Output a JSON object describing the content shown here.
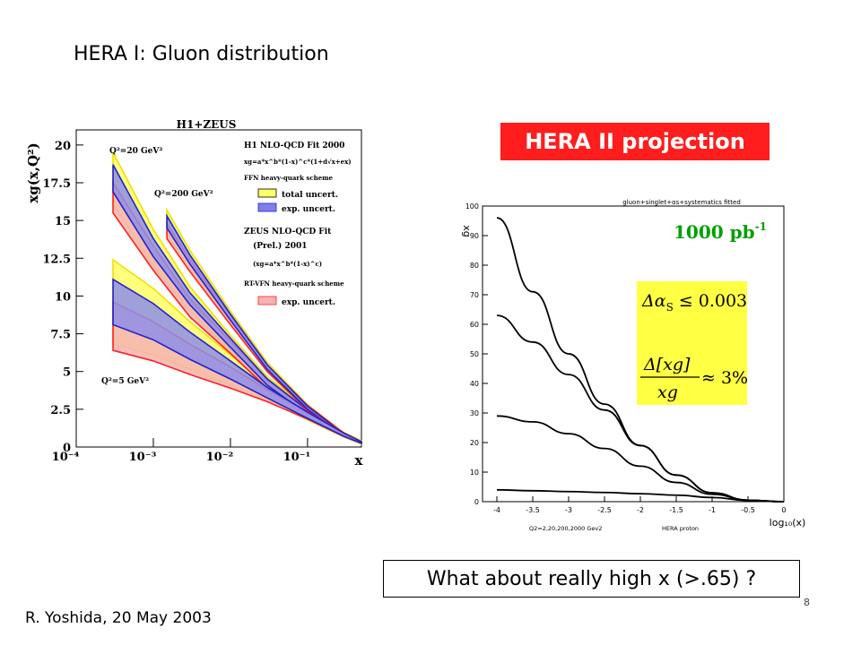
{
  "slide": {
    "title": "HERA I: Gluon distribution",
    "footer": "R. Yoshida, 20 May 2003",
    "page_number": "8",
    "projection_label": "HERA II projection",
    "question": "What about really high x  (>.65) ?"
  },
  "chart_data": [
    {
      "type": "area",
      "title": "H1+ZEUS",
      "xlabel": "x",
      "ylabel": "xg(x,Q²)",
      "x_scale": "log",
      "xlim": [
        0.0001,
        0.5
      ],
      "ylim": [
        0,
        21
      ],
      "xticks": [
        "10⁻⁴",
        "10⁻³",
        "10⁻²",
        "10⁻¹"
      ],
      "yticks": [
        "0",
        "2.5",
        "5",
        "7.5",
        "10",
        "12.5",
        "15",
        "17.5",
        "20"
      ],
      "legend": {
        "h1_title": "H1 NLO-QCD Fit 2000",
        "h1_param": "xg=a*x^b*(1-x)^c*(1+d√x+ex)",
        "h1_scheme": "FFN heavy-quark scheme",
        "total": "total uncert.",
        "exp": "exp. uncert.",
        "zeus_title": "ZEUS NLO-QCD Fit",
        "zeus_sub": "(Prel.) 2001",
        "zeus_param": "(xg=a*x^b*(1-x)^c)",
        "zeus_scheme": "RT-VFN heavy-quark scheme",
        "zeus_exp": "exp. uncert."
      },
      "q2_labels": [
        "Q²=20 GeV²",
        "Q²=200 GeV²",
        "Q²=5 GeV²"
      ],
      "curves": [
        {
          "name": "Q²=20 GeV²",
          "x": [
            0.0003,
            0.001,
            0.003,
            0.01,
            0.03,
            0.1,
            0.3,
            0.5
          ],
          "h1_central": [
            17.8,
            13.2,
            9.8,
            6.9,
            4.3,
            2.3,
            0.8,
            0.3
          ],
          "h1_total_err": [
            1.7,
            1.2,
            0.8,
            0.5,
            0.35,
            0.25,
            0.15,
            0.1
          ],
          "h1_exp_err": [
            0.9,
            0.6,
            0.4,
            0.3,
            0.2,
            0.15,
            0.1,
            0.05
          ],
          "zeus_central": [
            16.5,
            12.5,
            9.2,
            6.6,
            4.2,
            2.2,
            0.8,
            0.3
          ],
          "zeus_exp_err": [
            1.0,
            0.8,
            0.6,
            0.4,
            0.3,
            0.2,
            0.1,
            0.05
          ]
        },
        {
          "name": "Q²=200 GeV²",
          "x": [
            0.0015,
            0.003,
            0.01,
            0.03,
            0.1,
            0.3,
            0.5
          ],
          "h1_central": [
            14.9,
            12.4,
            8.6,
            5.3,
            2.6,
            0.8,
            0.3
          ],
          "h1_total_err": [
            0.8,
            0.6,
            0.4,
            0.3,
            0.2,
            0.1,
            0.05
          ],
          "h1_exp_err": [
            0.4,
            0.3,
            0.2,
            0.15,
            0.1,
            0.05,
            0.03
          ],
          "zeus_central": [
            14.3,
            12.0,
            8.4,
            5.2,
            2.6,
            0.8,
            0.3
          ],
          "zeus_exp_err": [
            0.5,
            0.4,
            0.3,
            0.2,
            0.15,
            0.1,
            0.05
          ]
        },
        {
          "name": "Q²=5 GeV²",
          "x": [
            0.0003,
            0.001,
            0.003,
            0.01,
            0.03,
            0.1,
            0.3,
            0.5
          ],
          "h1_central": [
            9.6,
            8.3,
            6.7,
            5.1,
            3.6,
            2.1,
            0.8,
            0.3
          ],
          "h1_total_err": [
            2.8,
            2.2,
            1.6,
            1.0,
            0.5,
            0.3,
            0.15,
            0.1
          ],
          "h1_exp_err": [
            1.5,
            1.2,
            0.9,
            0.6,
            0.35,
            0.2,
            0.1,
            0.05
          ],
          "zeus_central": [
            8.0,
            7.0,
            5.8,
            4.6,
            3.4,
            2.1,
            0.8,
            0.3
          ],
          "zeus_exp_err": [
            1.6,
            1.3,
            1.0,
            0.7,
            0.4,
            0.25,
            0.12,
            0.05
          ]
        }
      ],
      "colors": {
        "total_band": "#ffff66",
        "total_edge": "#f0e000",
        "h1_exp": "#2222cc",
        "zeus_exp": "#ff2020"
      }
    },
    {
      "type": "line",
      "title": "gluon+singlet+αs+systematics fitted",
      "xlabel": "log₁₀(x)",
      "ylabel": "xg",
      "xlim": [
        -4.2,
        0
      ],
      "ylim": [
        0,
        100
      ],
      "xticks": [
        "-4",
        "-3.5",
        "-3",
        "-2.5",
        "-2",
        "-1.5",
        "-1",
        "-0.5",
        "0"
      ],
      "yticks": [
        "0",
        "10",
        "20",
        "30",
        "40",
        "50",
        "60",
        "70",
        "80",
        "90",
        "100"
      ],
      "subtitle_left": "Q2=2,20,200,2000 Gev2",
      "subtitle_right": "HERA proton",
      "luminosity_label": "1000 pb",
      "luminosity_exp": "-1",
      "alpha_text": "Δα",
      "alpha_sub": "S",
      "alpha_bound": "≤ 0.003",
      "ratio_num": "Δ[xg]",
      "ratio_den": "xg",
      "ratio_value": "≈ 3%",
      "colors": {
        "box": "#ffff44",
        "lumi": "#00a000"
      },
      "series": [
        {
          "name": "Q²=2000",
          "x": [
            -4,
            -3.5,
            -3,
            -2.5,
            -2,
            -1.5,
            -1,
            -0.5,
            0
          ],
          "values": [
            96,
            71,
            50,
            33,
            19,
            9,
            3,
            0.5,
            0
          ]
        },
        {
          "name": "Q²=200",
          "x": [
            -4,
            -3.5,
            -3,
            -2.5,
            -2,
            -1.5,
            -1,
            -0.5,
            0
          ],
          "values": [
            63,
            54,
            43,
            31,
            19,
            9,
            3,
            0.5,
            0
          ]
        },
        {
          "name": "Q²=20",
          "x": [
            -4,
            -3.5,
            -3,
            -2.5,
            -2,
            -1.5,
            -1,
            -0.5,
            0
          ],
          "values": [
            29,
            27,
            23,
            18,
            12,
            6.5,
            2.5,
            0.5,
            0
          ]
        },
        {
          "name": "Q²=2",
          "x": [
            -4,
            -3.5,
            -3,
            -2.5,
            -2,
            -1.5,
            -1,
            -0.5,
            0
          ],
          "values": [
            4,
            3.7,
            3.4,
            3.1,
            2.7,
            2.2,
            1.4,
            0.4,
            0
          ]
        }
      ]
    }
  ]
}
